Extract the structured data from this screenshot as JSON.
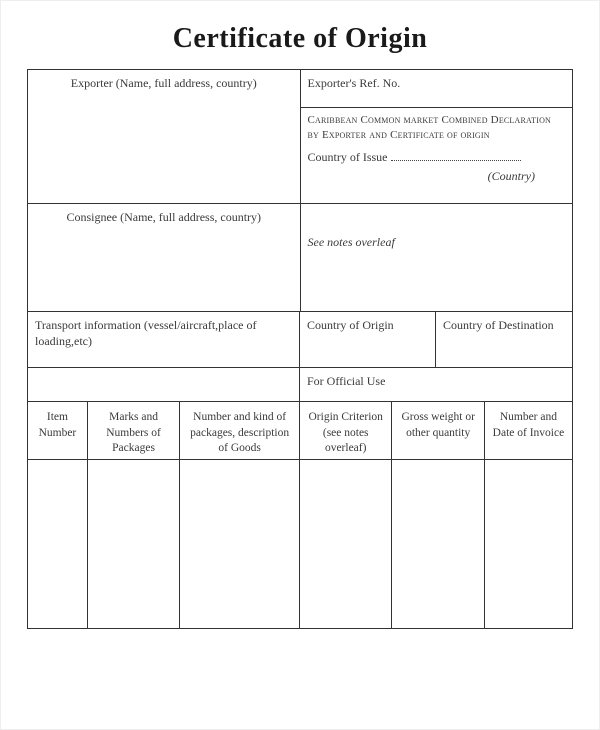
{
  "colors": {
    "border": "#333333",
    "text": "#2a2a2a",
    "muted_text": "#3a3a3a",
    "background": "#ffffff",
    "dotted_line": "#444444"
  },
  "typography": {
    "title_fontsize": 28,
    "title_weight": "bold",
    "cell_fontsize": 12,
    "column_header_fontsize": 11.5,
    "smallcaps_fontsize": 11,
    "font_family": "Georgia, Times New Roman, serif"
  },
  "title": "Certificate of Origin",
  "top_left": {
    "exporter_label": "Exporter (Name, full address, country)",
    "consignee_label": "Consignee (Name, full address, country)"
  },
  "top_right": {
    "ref_no_label": "Exporter's Ref. No.",
    "declaration_text": "Caribbean Common market Combined Declaration by Exporter and Certificate of origin",
    "country_issue_label": "Country of Issue",
    "country_italic": "(Country)",
    "see_notes": "See notes overleaf"
  },
  "mid": {
    "transport_label": "Transport information (vessel/aircraft,place of loading,etc)",
    "country_origin_label": "Country of Origin",
    "country_destination_label": "Country of Destination",
    "official_use_label": "For Official Use"
  },
  "columns": [
    "Item Number",
    "Marks and Numbers of Packages",
    "Number and kind of packages, description of Goods",
    "Origin Criterion (see notes overleaf)",
    "Gross weight or other quantity",
    "Number and Date of Invoice"
  ]
}
